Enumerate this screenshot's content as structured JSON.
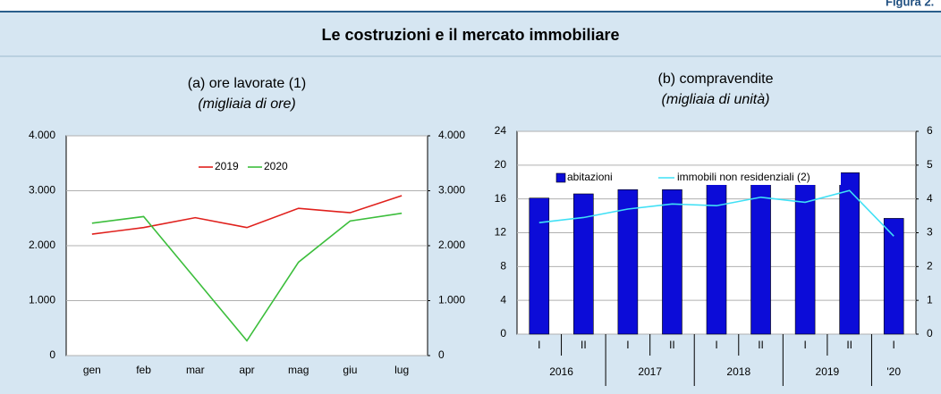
{
  "figure_label": "Figura 2.",
  "title": "Le costruzioni e il mercato immobiliare",
  "chart_data": [
    {
      "type": "line",
      "title": "(a) ore lavorate (1)",
      "subtitle": "(migliaia di ore)",
      "categories": [
        "gen",
        "feb",
        "mar",
        "apr",
        "mag",
        "giu",
        "lug"
      ],
      "series": [
        {
          "name": "2019",
          "color": "#e0201c",
          "values": [
            2210,
            2330,
            2510,
            2330,
            2680,
            2600,
            2910
          ]
        },
        {
          "name": "2020",
          "color": "#3cbe3c",
          "values": [
            2410,
            2530,
            1400,
            270,
            1700,
            2450,
            2590
          ]
        }
      ],
      "ylim": [
        0,
        4000
      ],
      "yticks": [
        0,
        {
          "value": 1000,
          "label": "1.000"
        },
        {
          "value": 2000,
          "label": "2.000"
        },
        {
          "value": 3000,
          "label": "3.000"
        },
        {
          "value": 4000,
          "label": "4.000"
        }
      ],
      "y2lim": [
        0,
        4000
      ],
      "y2ticks": [
        0,
        {
          "value": 1000,
          "label": "1.000"
        },
        {
          "value": 2000,
          "label": "2.000"
        },
        {
          "value": 3000,
          "label": "3.000"
        },
        {
          "value": 4000,
          "label": "4.000"
        }
      ],
      "grid": true,
      "legend": "top"
    },
    {
      "type": "bar",
      "title": "(b) compravendite",
      "subtitle": "(migliaia di unità)",
      "groups": [
        {
          "label": "2016",
          "categories": [
            "I",
            "II"
          ]
        },
        {
          "label": "2017",
          "categories": [
            "I",
            "II"
          ]
        },
        {
          "label": "2018",
          "categories": [
            "I",
            "II"
          ]
        },
        {
          "label": "2019",
          "categories": [
            "I",
            "II"
          ]
        },
        {
          "label": "'20",
          "categories": [
            "I"
          ]
        }
      ],
      "series": [
        {
          "name": "abitazioni",
          "color": "#0c0cd8",
          "type": "bar",
          "values": [
            16.1,
            16.6,
            17.1,
            17.1,
            18.1,
            18.8,
            18.6,
            19.1,
            13.7
          ]
        },
        {
          "name": "immobili non residenziali (2)",
          "color": "#3fe0f5",
          "type": "line",
          "axis": "y2",
          "values": [
            3.3,
            3.45,
            3.7,
            3.85,
            3.8,
            4.05,
            3.9,
            4.25,
            2.9
          ]
        }
      ],
      "ylim": [
        0,
        24
      ],
      "yticks": [
        0,
        4,
        8,
        12,
        16,
        20,
        24
      ],
      "y2lim": [
        0,
        6
      ],
      "y2ticks": [
        0,
        1,
        2,
        3,
        4,
        5,
        6
      ],
      "grid": true,
      "legend": "top"
    }
  ]
}
